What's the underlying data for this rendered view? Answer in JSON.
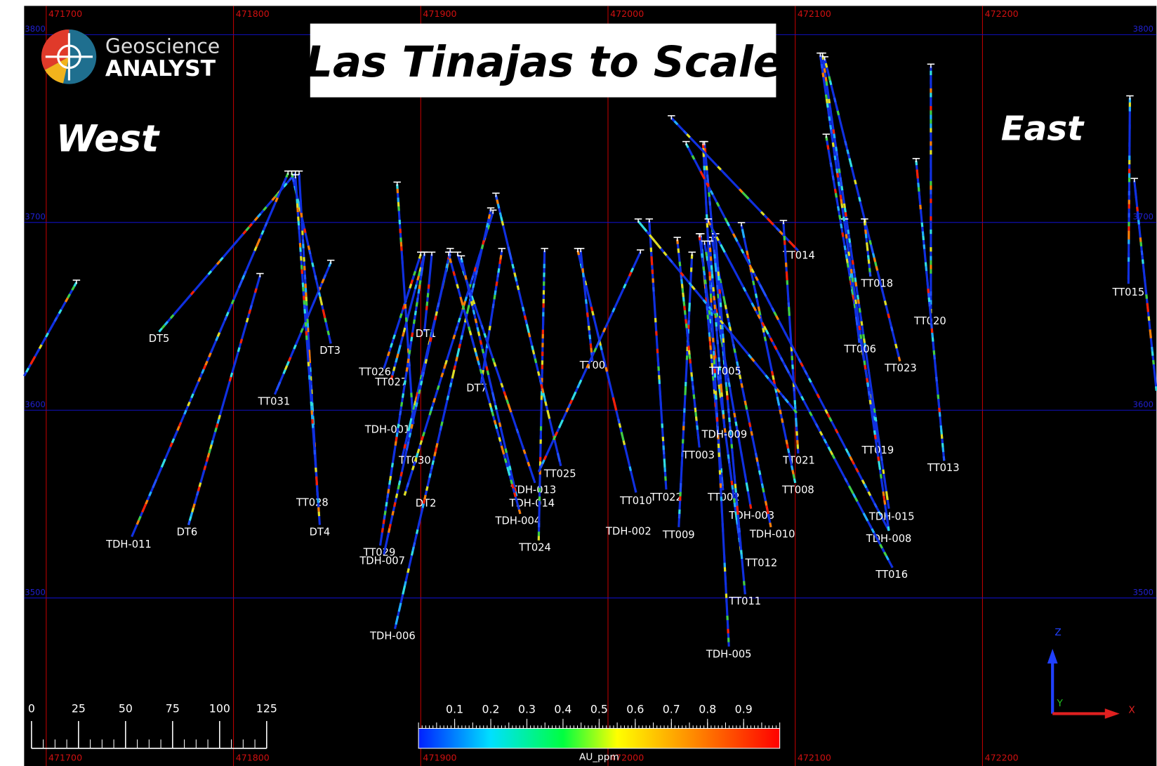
{
  "header": {
    "title": "Las Tinajas to Scale",
    "logo": {
      "line1": "Geoscience",
      "line2": "ANALYST"
    }
  },
  "labels": {
    "west": "West",
    "east": "East"
  },
  "grid": {
    "eastings": [
      471700,
      471800,
      471900,
      472000,
      472100,
      472200
    ],
    "elevations": [
      3800,
      3700,
      3600,
      3500
    ]
  },
  "holes": [
    "DT5",
    "TDH-011",
    "DT6",
    "TT031",
    "DT3",
    "TT028",
    "DT4",
    "TT026",
    "TT027",
    "TDH-001",
    "DT1",
    "TT030",
    "DT2",
    "TDH-006",
    "TT029",
    "TDH-007",
    "DT7",
    "TDH-013",
    "TDH-014",
    "TDH-004",
    "TT024",
    "TT025",
    "TT010",
    "TT00",
    "TDH-002",
    "TT022",
    "TT009",
    "TT003",
    "TT002",
    "TDH-003",
    "TDH-010",
    "TT012",
    "TT011",
    "TDH-005",
    "TDH-009",
    "TT005",
    "TT014",
    "TT021",
    "TT008",
    "TDH-008",
    "TT016",
    "TDH-015",
    "TT019",
    "TT006",
    "TT023",
    "TT018",
    "TT020",
    "TT013",
    "TT015"
  ],
  "scale_bar": {
    "ticks": [
      0,
      25,
      50,
      75,
      100,
      125
    ]
  },
  "colorbar": {
    "ticks": [
      0.1,
      0.2,
      0.3,
      0.4,
      0.5,
      0.6,
      0.7,
      0.8,
      0.9
    ],
    "label": "AU_ppm"
  },
  "axes_triad": {
    "z": "Z",
    "y": "Y",
    "x": "X"
  }
}
